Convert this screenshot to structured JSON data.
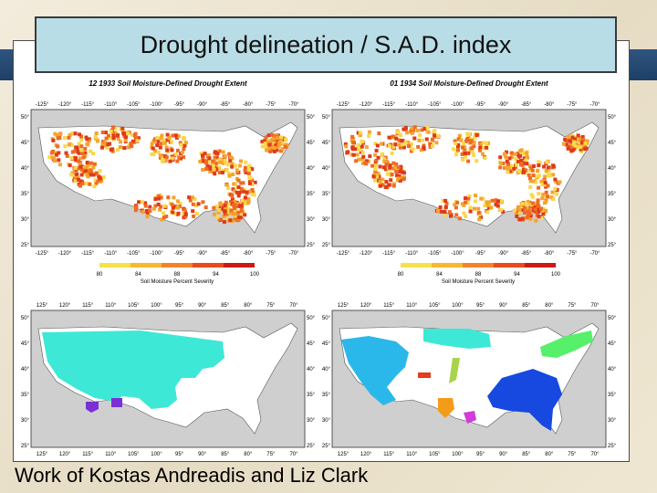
{
  "slide_title": "Drought delineation / S.A.D. index",
  "caption": "Work of Kostas Andreadis and Liz Clark",
  "panels": {
    "top_left_title": "12 1933 Soil Moisture-Defined Drought Extent",
    "top_right_title": "01 1934 Soil Moisture-Defined Drought Extent"
  },
  "longitude_ticks_top": [
    "-125°",
    "-120°",
    "-115°",
    "-110°",
    "-105°",
    "-100°",
    "-95°",
    "-90°",
    "-85°",
    "-80°",
    "-75°",
    "-70°"
  ],
  "longitude_ticks_bottom": [
    "125°",
    "120°",
    "115°",
    "110°",
    "105°",
    "100°",
    "95°",
    "90°",
    "85°",
    "80°",
    "75°",
    "70°"
  ],
  "latitude_ticks": [
    "50°",
    "45°",
    "40°",
    "35°",
    "30°",
    "25°"
  ],
  "colorbar": {
    "ticks": [
      "80",
      "84",
      "88",
      "94",
      "100"
    ],
    "label": "Soil Moisture Percent Severity",
    "colors": [
      "#f5e14a",
      "#f7b733",
      "#f2832a",
      "#e94a1f",
      "#cc1a14"
    ]
  },
  "map_colors": {
    "land": "#ffffff",
    "outside": "#cfcfcf",
    "severity": [
      "#f9d94a",
      "#f5a42f",
      "#ef6b22",
      "#e03a18"
    ],
    "clusters": [
      "#3ee8d6",
      "#2ab8ea",
      "#7b2fd6",
      "#e63b1c",
      "#f39c1a",
      "#a7d44a",
      "#57f06b",
      "#1748e0",
      "#d23cd8"
    ]
  }
}
